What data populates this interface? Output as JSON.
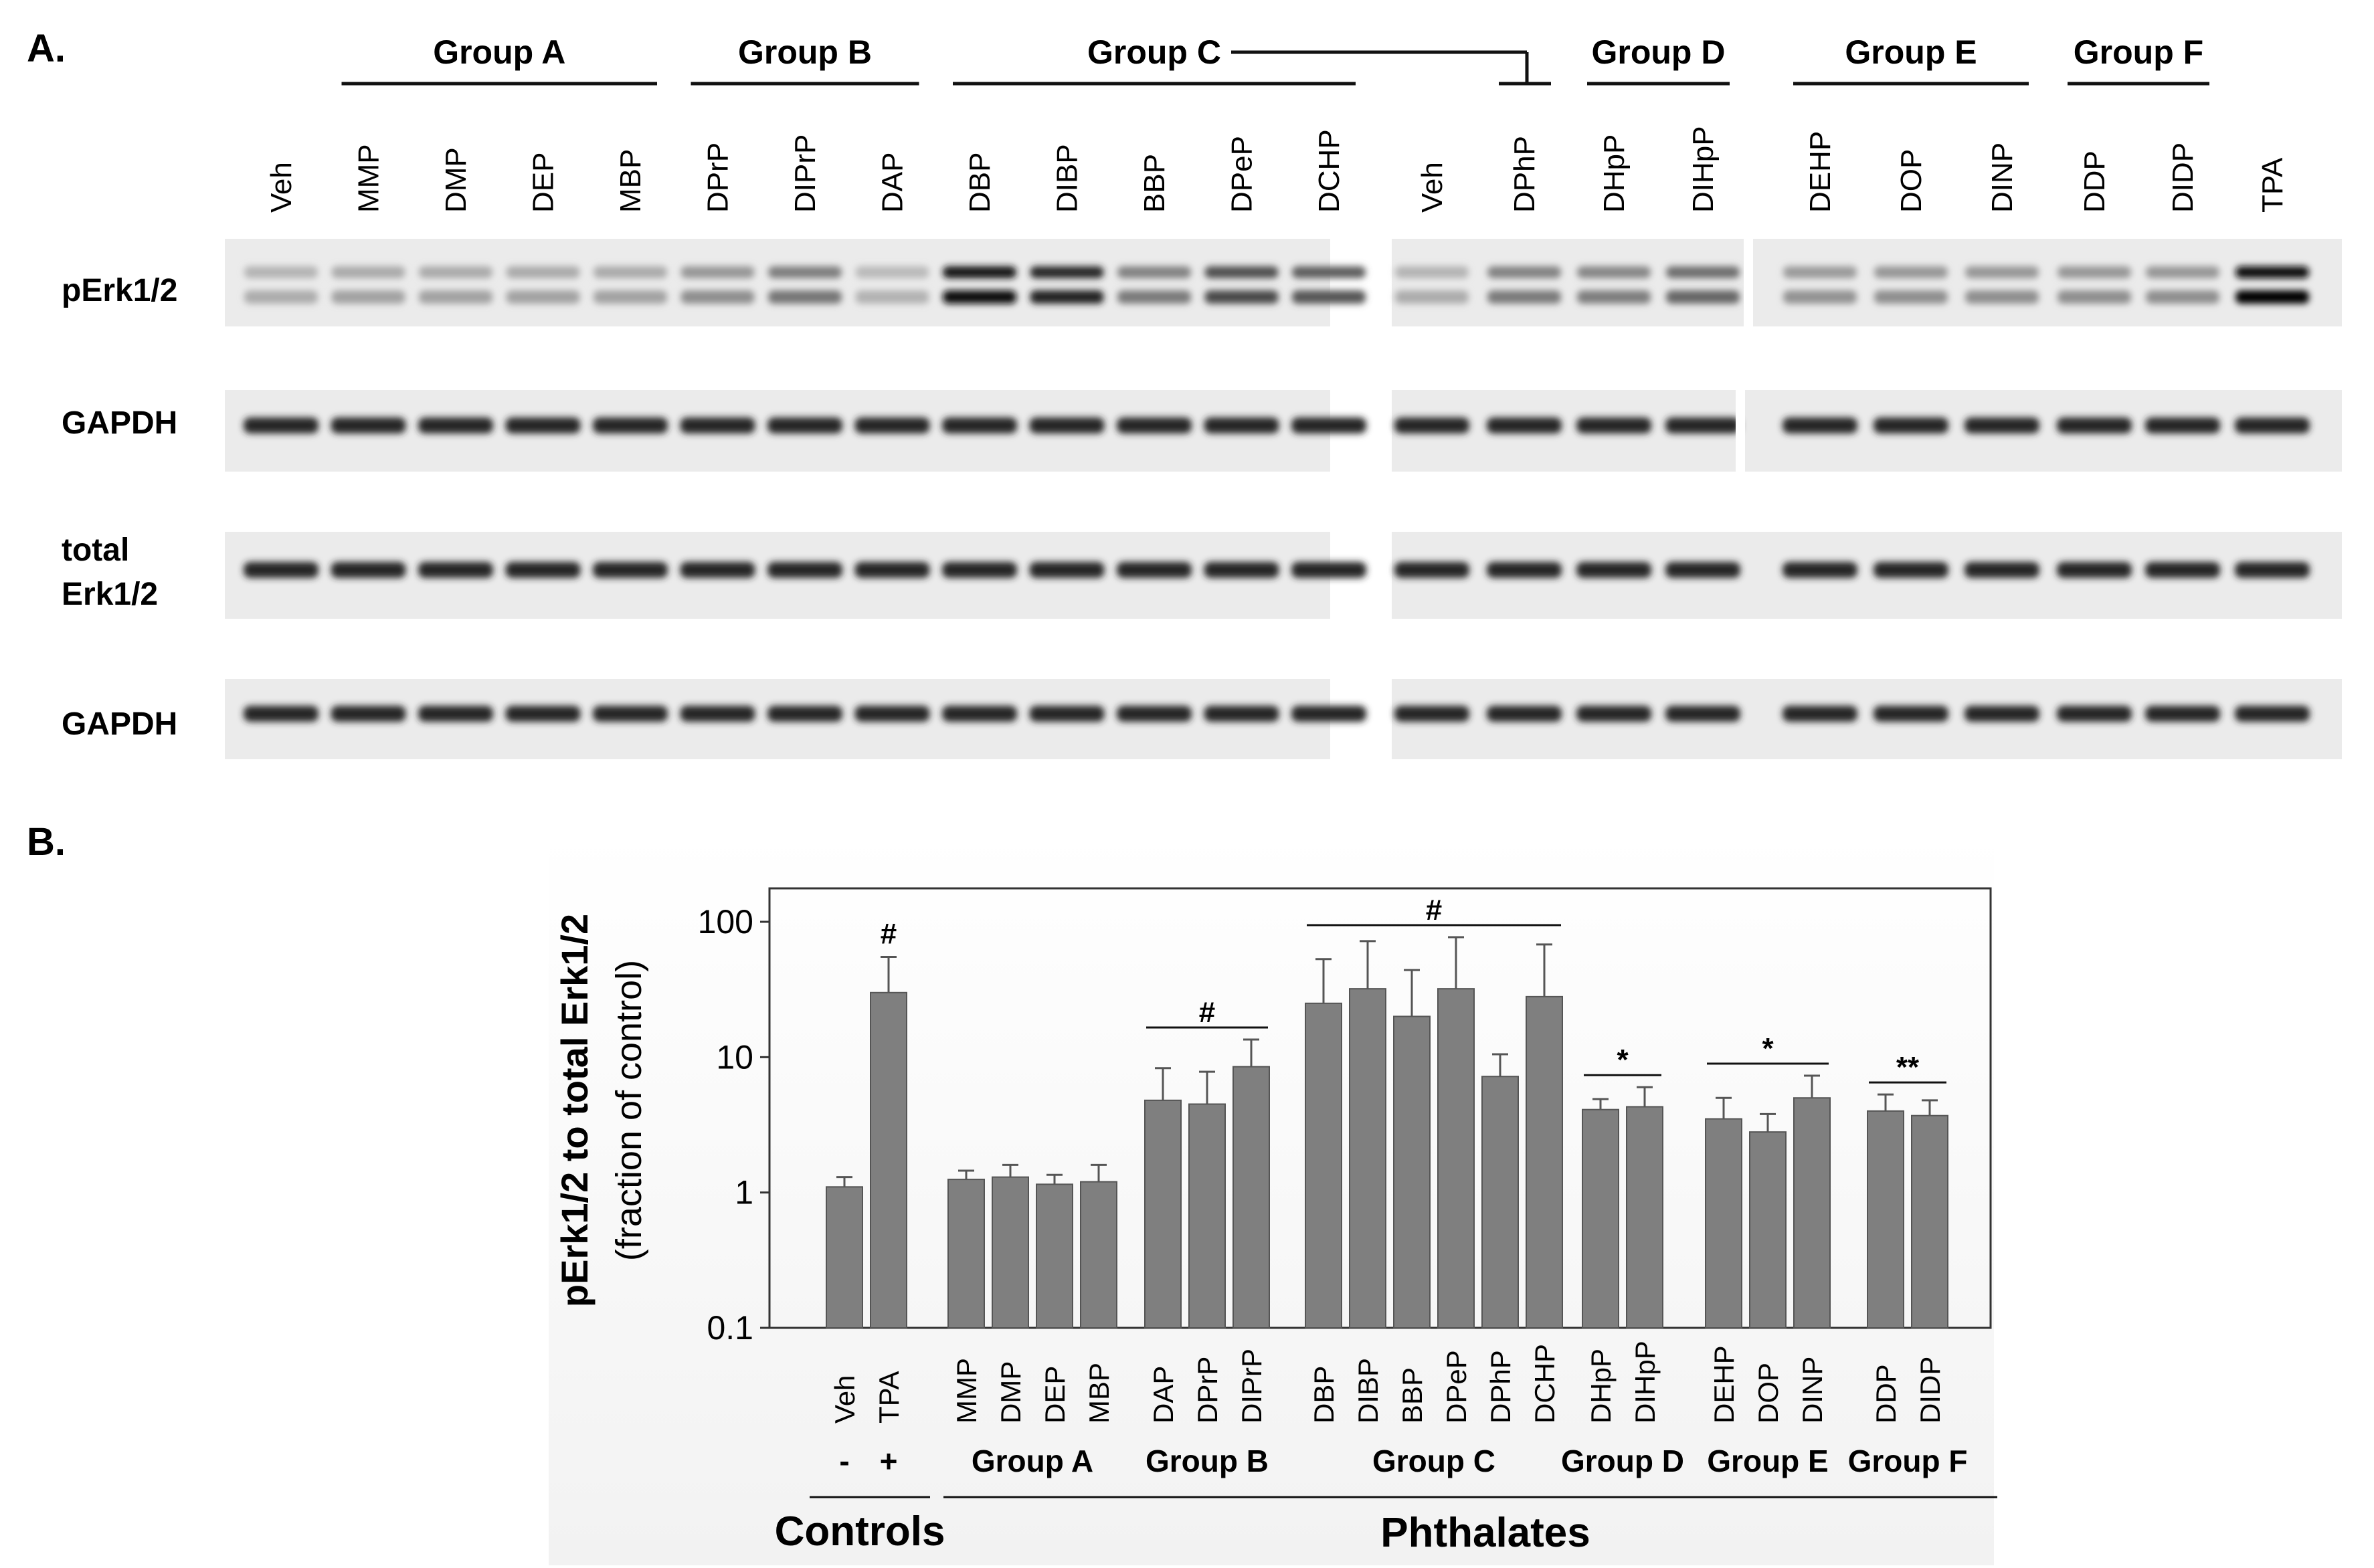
{
  "panel_a": {
    "label": "A.",
    "left_blot": {
      "lanes": [
        "Veh",
        "MMP",
        "DMP",
        "DEP",
        "MBP",
        "DPrP",
        "DIPrP",
        "DAP",
        "DBP",
        "DIBP",
        "BBP",
        "DPeP",
        "DCHP"
      ],
      "groups": [
        {
          "label": "Group A",
          "first_lane": 1,
          "last_lane": 4
        },
        {
          "label": "Group B",
          "first_lane": 5,
          "last_lane": 7
        },
        {
          "label": "Group C",
          "first_lane": 8,
          "last_lane": 12
        }
      ],
      "perk_intensity": [
        0.15,
        0.2,
        0.2,
        0.2,
        0.2,
        0.3,
        0.42,
        0.12,
        0.95,
        0.85,
        0.4,
        0.65,
        0.58
      ]
    },
    "right_blot": {
      "lanes": [
        "Veh",
        "DPhP",
        "DHpP",
        "DIHpP",
        "DEHP",
        "DOP",
        "DINP",
        "DDP",
        "DIDP",
        "TPA"
      ],
      "groups": [
        {
          "label": "Group D",
          "first_lane": 2,
          "last_lane": 3
        },
        {
          "label": "Group E",
          "first_lane": 4,
          "last_lane": 6
        },
        {
          "label": "Group F",
          "first_lane": 7,
          "last_lane": 8
        }
      ],
      "perk_intensity": [
        0.15,
        0.4,
        0.38,
        0.5,
        0.28,
        0.3,
        0.3,
        0.3,
        0.3,
        1.0
      ]
    },
    "rows": [
      {
        "label": "pErk1/2"
      },
      {
        "label": "GAPDH"
      },
      {
        "label_line1": "total",
        "label_line2": "Erk1/2"
      },
      {
        "label": "GAPDH"
      }
    ]
  },
  "panel_b": {
    "label": "B.",
    "chart_data": {
      "type": "bar",
      "yscale": "log",
      "ylim": [
        0.1,
        100
      ],
      "yticks": [
        "0.1",
        "1",
        "10",
        "100"
      ],
      "ylabel_line1": "pErk1/2 to total Erk1/2",
      "ylabel_line2": "(fraction of control)",
      "groups": [
        {
          "label": "",
          "categories": [
            "Veh",
            "TPA"
          ],
          "values": [
            1.1,
            30
          ],
          "errors": [
            1.3,
            55
          ]
        },
        {
          "label": "Group A",
          "categories": [
            "MMP",
            "DMP",
            "DEP",
            "MBP"
          ],
          "values": [
            1.25,
            1.3,
            1.15,
            1.2
          ],
          "errors": [
            1.45,
            1.6,
            1.35,
            1.6
          ]
        },
        {
          "label": "Group B",
          "categories": [
            "DAP",
            "DPrP",
            "DIPrP"
          ],
          "values": [
            4.8,
            4.5,
            8.5
          ],
          "errors": [
            8.3,
            7.8,
            13.5
          ]
        },
        {
          "label": "Group C",
          "categories": [
            "DBP",
            "DIBP",
            "BBP",
            "DPeP",
            "DPhP",
            "DCHP"
          ],
          "values": [
            25,
            32,
            20,
            32,
            7.2,
            28
          ],
          "errors": [
            53,
            72,
            44,
            77,
            10.5,
            68
          ]
        },
        {
          "label": "Group D",
          "categories": [
            "DHpP",
            "DIHpP"
          ],
          "values": [
            4.1,
            4.3
          ],
          "errors": [
            4.9,
            6.0
          ]
        },
        {
          "label": "Group E",
          "categories": [
            "DEHP",
            "DOP",
            "DINP"
          ],
          "values": [
            3.5,
            2.8,
            5.0
          ],
          "errors": [
            5.0,
            3.8,
            7.3
          ]
        },
        {
          "label": "Group F",
          "categories": [
            "DDP",
            "DIDP"
          ],
          "values": [
            4.0,
            3.7
          ],
          "errors": [
            5.3,
            4.8
          ]
        }
      ],
      "control_signs": [
        "-",
        "+"
      ],
      "supergroups": [
        "Controls",
        "Phthalates"
      ],
      "significance": [
        {
          "mark": "#",
          "over": "TPA"
        },
        {
          "mark": "#",
          "from": "DAP",
          "to": "DIPrP"
        },
        {
          "mark": "#",
          "from": "DBP",
          "to": "DCHP"
        },
        {
          "mark": "*",
          "from": "DHpP",
          "to": "DIHpP"
        },
        {
          "mark": "*",
          "from": "DEHP",
          "to": "DINP"
        },
        {
          "mark": "**",
          "from": "DDP",
          "to": "DIDP"
        }
      ],
      "bar_color": "#7f7f7f"
    }
  }
}
